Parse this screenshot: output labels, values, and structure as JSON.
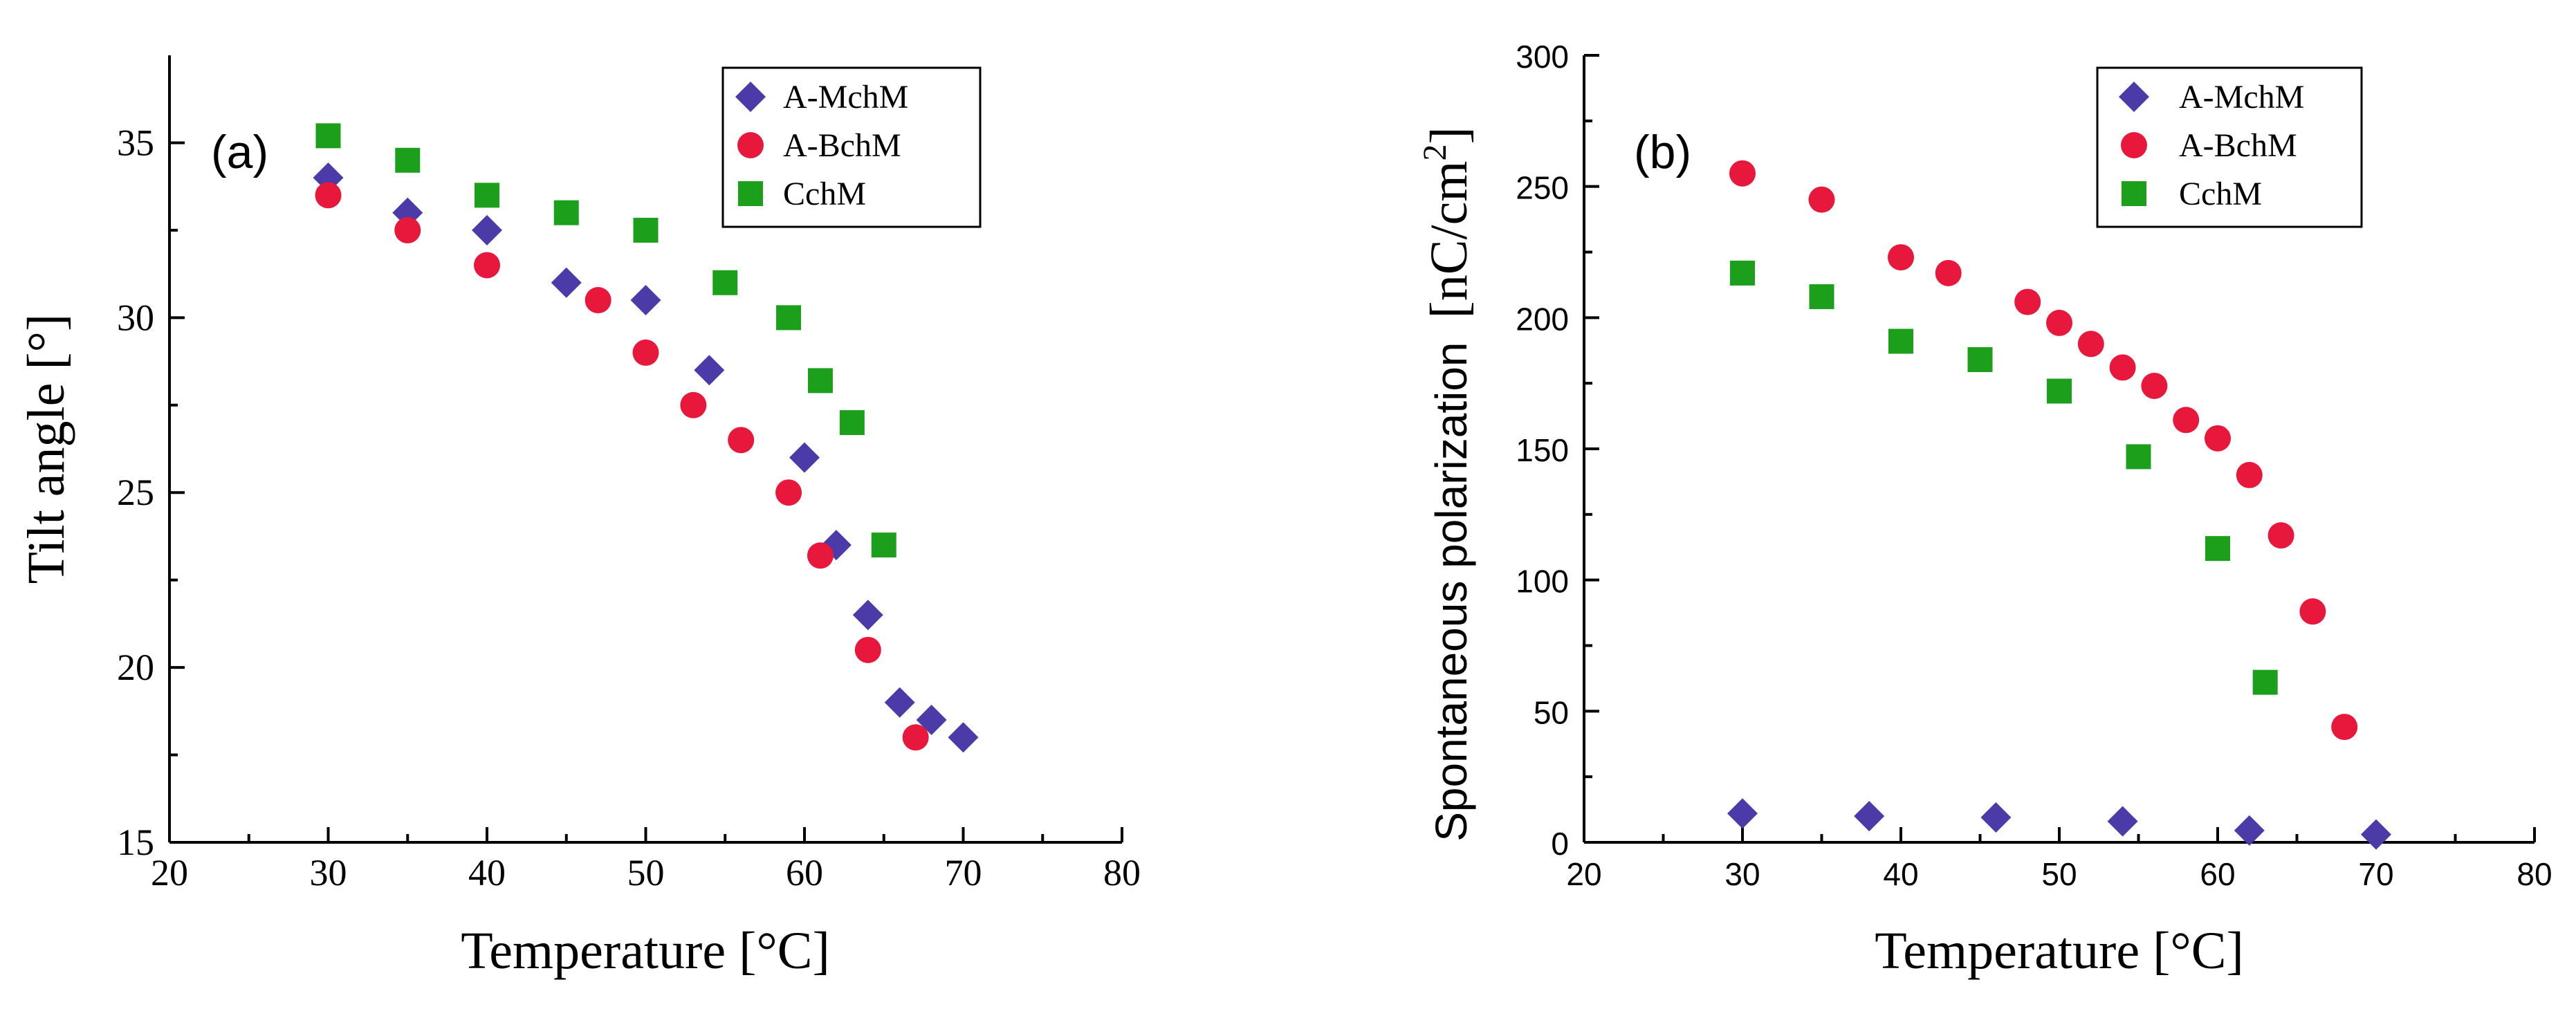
{
  "colors": {
    "A-MchM": "#4b3ba8",
    "A-BchM": "#e8183c",
    "CchM": "#1ca01c"
  },
  "chart_data": [
    {
      "type": "scatter",
      "panel_label": "(a)",
      "xlabel": "Temperature [°C]",
      "ylabel": "Tilt angle [°]",
      "xlim": [
        20,
        80
      ],
      "ylim": [
        15,
        37.5
      ],
      "x_ticks": [
        "20",
        "30",
        "40",
        "50",
        "60",
        "70",
        "80"
      ],
      "y_ticks": [
        "15",
        "20",
        "25",
        "30",
        "35"
      ],
      "legend_position": "top-right",
      "series": [
        {
          "name": "A-MchM",
          "marker": "diamond",
          "points": [
            [
              30,
              34
            ],
            [
              35,
              33
            ],
            [
              40,
              32.5
            ],
            [
              45,
              31
            ],
            [
              50,
              30.5
            ],
            [
              54,
              28.5
            ],
            [
              60,
              26
            ],
            [
              62,
              23.5
            ],
            [
              64,
              21.5
            ],
            [
              66,
              19
            ],
            [
              68,
              18.5
            ],
            [
              70,
              18
            ]
          ]
        },
        {
          "name": "A-BchM",
          "marker": "circle",
          "points": [
            [
              30,
              33.5
            ],
            [
              35,
              32.5
            ],
            [
              40,
              31.5
            ],
            [
              47,
              30.5
            ],
            [
              50,
              29
            ],
            [
              53,
              27.5
            ],
            [
              56,
              26.5
            ],
            [
              59,
              25
            ],
            [
              61,
              23.2
            ],
            [
              64,
              20.5
            ],
            [
              67,
              18
            ]
          ]
        },
        {
          "name": "CchM",
          "marker": "square",
          "points": [
            [
              30,
              35.2
            ],
            [
              35,
              34.5
            ],
            [
              40,
              33.5
            ],
            [
              45,
              33
            ],
            [
              50,
              32.5
            ],
            [
              55,
              31
            ],
            [
              59,
              30
            ],
            [
              61,
              28.2
            ],
            [
              63,
              27
            ],
            [
              65,
              23.5
            ]
          ]
        }
      ]
    },
    {
      "type": "scatter",
      "panel_label": "(b)",
      "xlabel": "Temperature [°C]",
      "ylabel_text": "Spontaneous polarization",
      "ylabel_unit_prefix": "[nC/cm",
      "ylabel_unit_sup": "2",
      "ylabel_unit_suffix": "]",
      "xlim": [
        20,
        80
      ],
      "ylim": [
        0,
        300
      ],
      "x_ticks": [
        "20",
        "30",
        "40",
        "50",
        "60",
        "70",
        "80"
      ],
      "y_ticks": [
        "0",
        "50",
        "100",
        "150",
        "200",
        "250",
        "300"
      ],
      "legend_position": "top-right",
      "series": [
        {
          "name": "A-MchM",
          "marker": "diamond",
          "points": [
            [
              30,
              11
            ],
            [
              38,
              10
            ],
            [
              46,
              9.5
            ],
            [
              54,
              8
            ],
            [
              62,
              4.5
            ],
            [
              70,
              3
            ]
          ]
        },
        {
          "name": "A-BchM",
          "marker": "circle",
          "points": [
            [
              30,
              255
            ],
            [
              35,
              245
            ],
            [
              40,
              223
            ],
            [
              43,
              217
            ],
            [
              48,
              206
            ],
            [
              50,
              198
            ],
            [
              52,
              190
            ],
            [
              54,
              181
            ],
            [
              56,
              174
            ],
            [
              58,
              161
            ],
            [
              60,
              154
            ],
            [
              62,
              140
            ],
            [
              64,
              117
            ],
            [
              66,
              88
            ],
            [
              68,
              44
            ]
          ]
        },
        {
          "name": "CchM",
          "marker": "square",
          "points": [
            [
              30,
              217
            ],
            [
              35,
              208
            ],
            [
              40,
              191
            ],
            [
              45,
              184
            ],
            [
              50,
              172
            ],
            [
              55,
              147
            ],
            [
              60,
              112
            ],
            [
              63,
              61
            ]
          ]
        }
      ]
    }
  ]
}
